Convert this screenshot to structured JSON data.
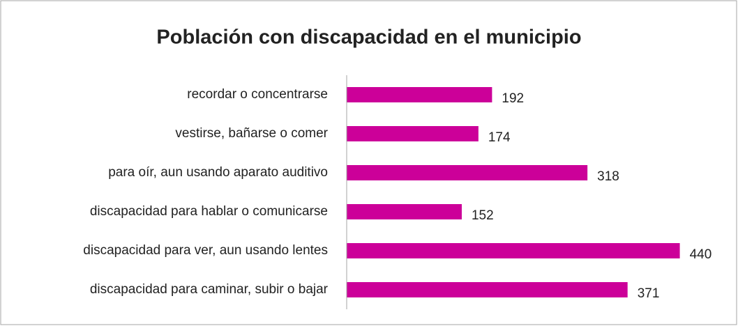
{
  "chart_data": {
    "type": "barh",
    "title": "Población con discapacidad en el municipio",
    "categories": [
      "recordar o concentrarse",
      "vestirse, bañarse o comer",
      "para oír, aun usando aparato auditivo",
      "discapacidad para hablar o comunicarse",
      "discapacidad para ver, aun usando lentes",
      "discapacidad para caminar, subir o bajar"
    ],
    "values": [
      192,
      174,
      318,
      152,
      440,
      371
    ],
    "color": "#cc0099",
    "xlim": [
      0,
      480
    ]
  }
}
